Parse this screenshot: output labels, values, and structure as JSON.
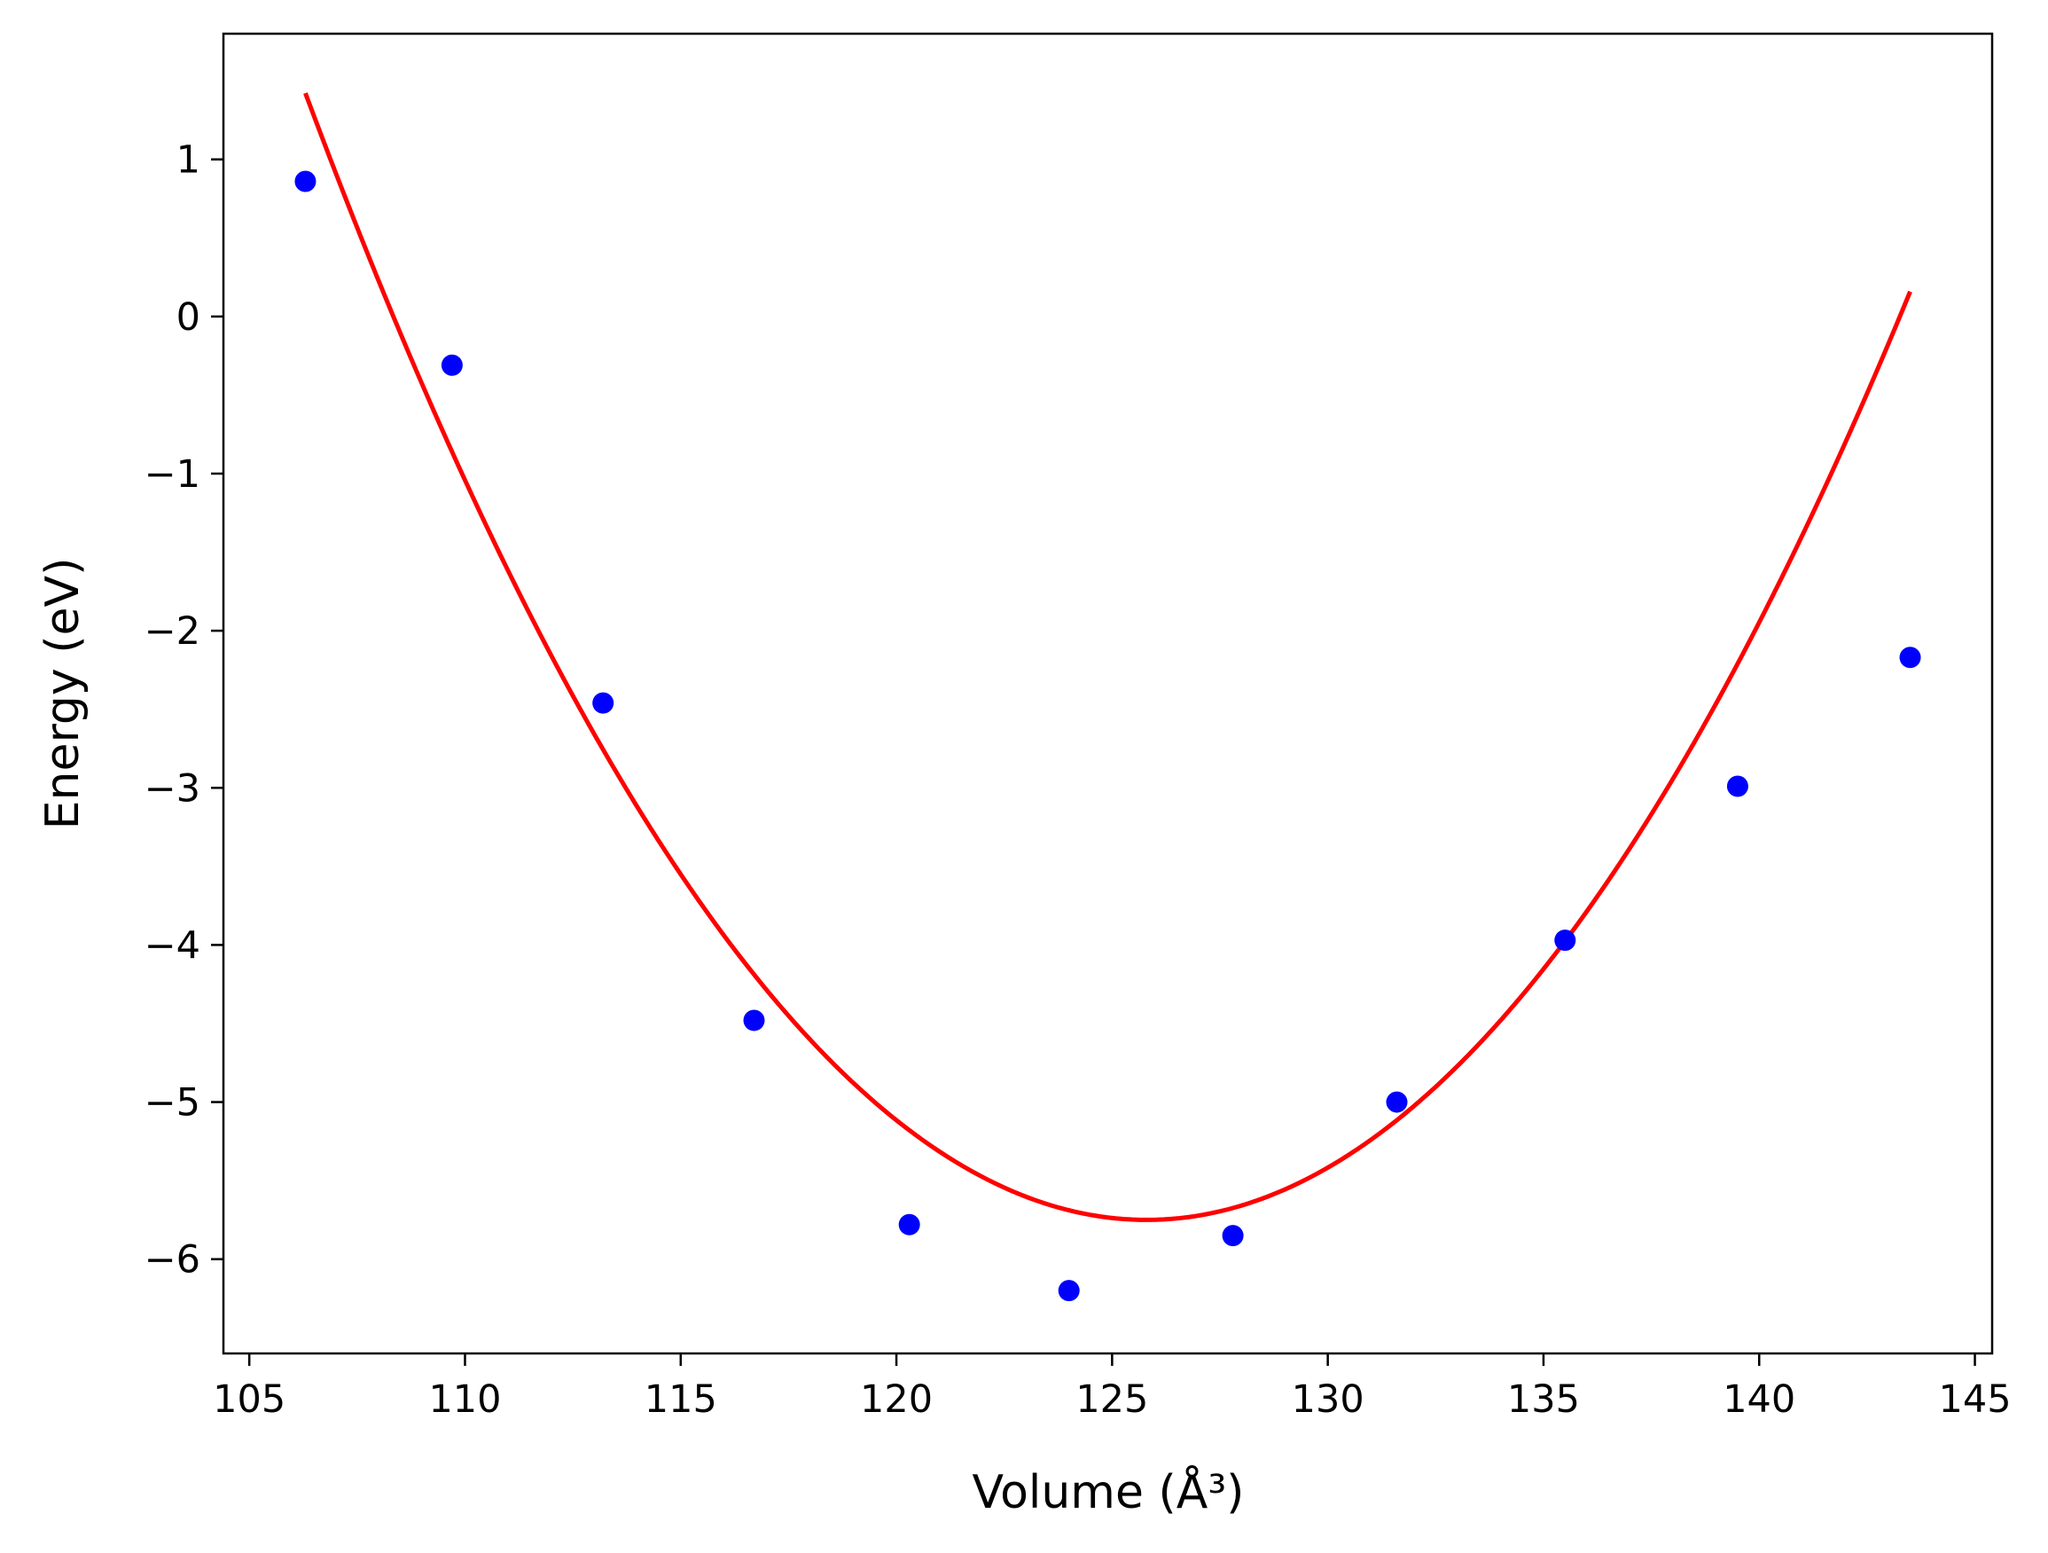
{
  "chart_data": {
    "type": "scatter",
    "xlabel": "Volume (Å³)",
    "ylabel": "Energy (eV)",
    "xlim": [
      104.4,
      145.4
    ],
    "ylim": [
      -6.6,
      1.8
    ],
    "x_ticks": [
      105,
      110,
      115,
      120,
      125,
      130,
      135,
      140,
      145
    ],
    "y_ticks": [
      1,
      0,
      -1,
      -2,
      -3,
      -4,
      -5,
      -6
    ],
    "x_tick_labels": [
      "105",
      "110",
      "115",
      "120",
      "125",
      "130",
      "135",
      "140",
      "145"
    ],
    "y_tick_labels": [
      "1",
      "0",
      "−1",
      "−2",
      "−3",
      "−4",
      "−5",
      "−6"
    ],
    "grid": false,
    "legend": "none",
    "series": [
      {
        "kind": "points",
        "color": "#0000ff",
        "x": [
          106.3,
          109.7,
          113.2,
          116.7,
          120.3,
          124.0,
          127.8,
          131.6,
          135.5,
          139.5,
          143.5
        ],
        "y": [
          0.86,
          -0.31,
          -2.46,
          -4.48,
          -5.78,
          -6.2,
          -5.85,
          -5.0,
          -3.97,
          -2.99,
          -2.17
        ]
      },
      {
        "kind": "fit-line",
        "color": "#ff0000",
        "fit": {
          "vertex_x": 125.8,
          "vertex_y": -5.75,
          "curvature": 0.01886,
          "x_start": 106.3,
          "x_end": 143.5
        }
      }
    ]
  }
}
